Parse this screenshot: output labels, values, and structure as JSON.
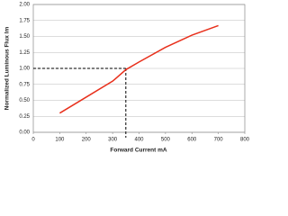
{
  "chart_data": {
    "type": "line",
    "x_label": "Forward Current mA",
    "y_label": "Normalized Luminous Flux lm",
    "x": [
      100,
      200,
      300,
      350,
      400,
      500,
      600,
      700
    ],
    "series": [
      {
        "color": "#e8301c",
        "values": [
          0.3,
          0.55,
          0.8,
          0.98,
          1.1,
          1.33,
          1.52,
          1.67
        ]
      }
    ],
    "xlim": [
      0,
      800
    ],
    "xticks": [
      0,
      100,
      200,
      300,
      400,
      500,
      600,
      700,
      800
    ],
    "ylim": [
      0,
      2
    ],
    "yticks": [
      {
        "value": 0,
        "label": "0.00"
      },
      {
        "value": 0.25,
        "label": "0.25"
      },
      {
        "value": 0.5,
        "label": "0.50"
      },
      {
        "value": 0.75,
        "label": "0.75"
      },
      {
        "value": 1,
        "label": "1.00"
      },
      {
        "value": 1.25,
        "label": "1.25"
      },
      {
        "value": 1.5,
        "label": "1.50"
      },
      {
        "value": 1.75,
        "label": "1.75"
      },
      {
        "value": 2,
        "label": "2.00"
      }
    ],
    "grid": true,
    "ref_x": 350,
    "ref_y": 1.0
  }
}
